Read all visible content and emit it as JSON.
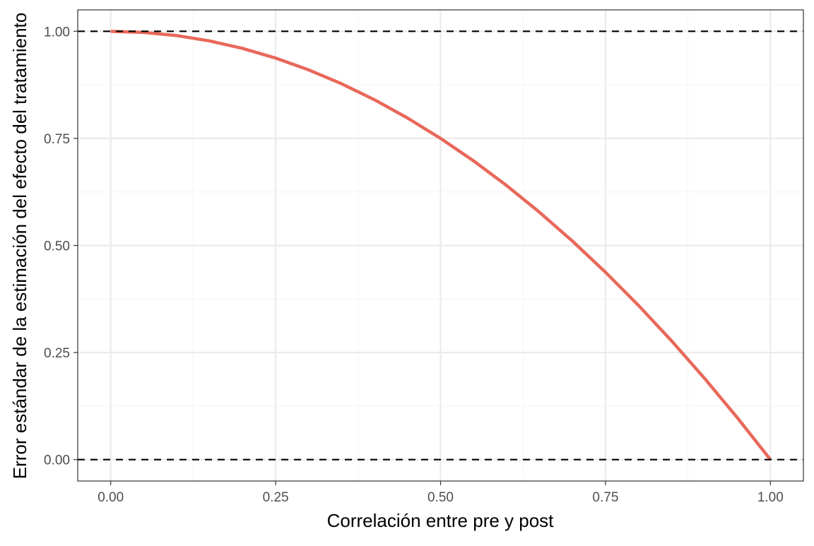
{
  "chart_data": {
    "type": "line",
    "title": "",
    "xlabel": "Correlación entre pre y post",
    "ylabel": "Error estándar de la estimación del efecto del tratamiento",
    "xlim": [
      -0.05,
      1.05
    ],
    "ylim": [
      -0.05,
      1.05
    ],
    "grid": true,
    "legend": "none",
    "x_ticks": [
      0,
      0.25,
      0.5,
      0.75,
      1
    ],
    "x_tick_labels": [
      "0.00",
      "0.25",
      "0.50",
      "0.75",
      "1.00"
    ],
    "y_ticks": [
      0,
      0.25,
      0.5,
      0.75,
      1
    ],
    "y_tick_labels": [
      "0.00",
      "0.25",
      "0.50",
      "0.75",
      "1.00"
    ],
    "reference_lines": [
      {
        "axis": "y",
        "value": 1,
        "style": "dashed",
        "color": "#000000"
      },
      {
        "axis": "y",
        "value": 0,
        "style": "dashed",
        "color": "#000000"
      }
    ],
    "series": [
      {
        "color": "#e8685a",
        "x": [
          0,
          0.05,
          0.1,
          0.15,
          0.2,
          0.25,
          0.3,
          0.35,
          0.4,
          0.45,
          0.5,
          0.55,
          0.6,
          0.65,
          0.7,
          0.75,
          0.8,
          0.85,
          0.9,
          0.95,
          1
        ],
        "y": [
          1,
          0.9975,
          0.99,
          0.9775,
          0.96,
          0.9375,
          0.91,
          0.8775,
          0.84,
          0.7975,
          0.75,
          0.6975,
          0.64,
          0.5775,
          0.51,
          0.4375,
          0.36,
          0.2775,
          0.19,
          0.0975,
          0
        ]
      }
    ]
  },
  "colors": {
    "panel_border": "#333333",
    "grid_major": "#ebebeb",
    "grid_minor": "#f5f5f5",
    "tick_text": "#4d4d4d",
    "axis_title": "#000000"
  }
}
